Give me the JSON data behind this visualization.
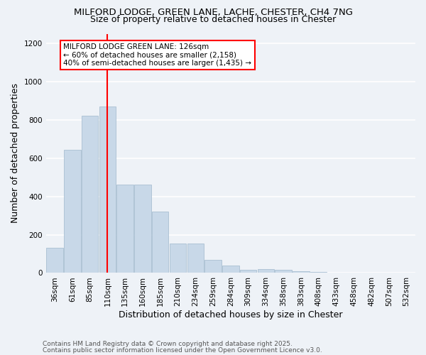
{
  "title1": "MILFORD LODGE, GREEN LANE, LACHE, CHESTER, CH4 7NG",
  "title2": "Size of property relative to detached houses in Chester",
  "xlabel": "Distribution of detached houses by size in Chester",
  "ylabel": "Number of detached properties",
  "categories": [
    "36sqm",
    "61sqm",
    "85sqm",
    "110sqm",
    "135sqm",
    "160sqm",
    "185sqm",
    "210sqm",
    "234sqm",
    "259sqm",
    "284sqm",
    "309sqm",
    "334sqm",
    "358sqm",
    "383sqm",
    "408sqm",
    "433sqm",
    "458sqm",
    "482sqm",
    "507sqm",
    "532sqm"
  ],
  "values": [
    130,
    645,
    820,
    870,
    460,
    460,
    320,
    155,
    155,
    70,
    40,
    15,
    20,
    15,
    10,
    5,
    3,
    3,
    2,
    1,
    1
  ],
  "bar_color": "#c8d8e8",
  "bar_edgecolor": "#a0b8cc",
  "vline_x": 3.0,
  "vline_color": "red",
  "annotation_lines": [
    "MILFORD LODGE GREEN LANE: 126sqm",
    "← 60% of detached houses are smaller (2,158)",
    "40% of semi-detached houses are larger (1,435) →"
  ],
  "annotation_box_color": "white",
  "annotation_box_edgecolor": "red",
  "ylim": [
    0,
    1250
  ],
  "yticks": [
    0,
    200,
    400,
    600,
    800,
    1000,
    1200
  ],
  "footer1": "Contains HM Land Registry data © Crown copyright and database right 2025.",
  "footer2": "Contains public sector information licensed under the Open Government Licence v3.0.",
  "background_color": "#eef2f7",
  "grid_color": "white",
  "title_fontsize": 9.5,
  "subtitle_fontsize": 9,
  "axis_label_fontsize": 9,
  "tick_fontsize": 7.5,
  "footer_fontsize": 6.5
}
